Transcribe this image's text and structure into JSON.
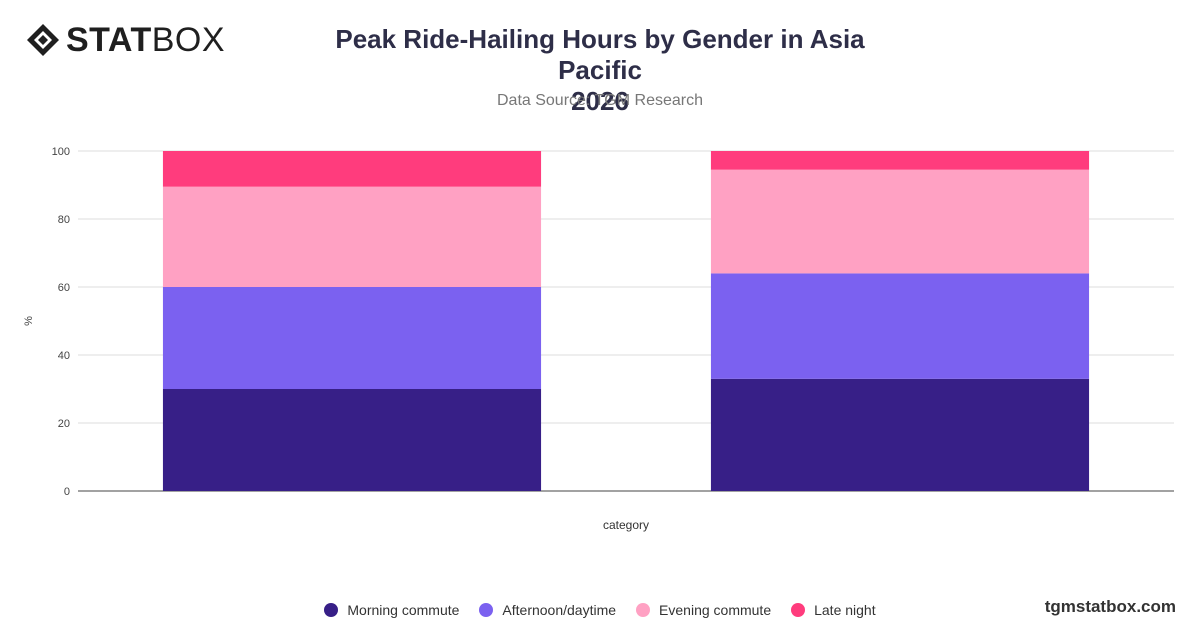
{
  "logo": {
    "bold": "STAT",
    "light": "BOX"
  },
  "title_line1": "Peak Ride-Hailing Hours by Gender in Asia Pacific",
  "title_line2": "2026",
  "subtitle": "Data Source: TGM Research",
  "brand": "tgmstatbox.com",
  "chart_data": {
    "type": "bar",
    "stacked": true,
    "categories": [
      "",
      ""
    ],
    "xlabel": "category",
    "ylabel": "%",
    "ylim": [
      0,
      100
    ],
    "yticks": [
      0,
      20,
      40,
      60,
      80,
      100
    ],
    "grid": true,
    "legend_position": "bottom",
    "series": [
      {
        "name": "Morning commute",
        "color": "#371F87",
        "values": [
          30,
          33
        ]
      },
      {
        "name": "Afternoon/daytime",
        "color": "#7B61F0",
        "values": [
          30,
          31
        ]
      },
      {
        "name": "Evening commute",
        "color": "#FFA1C3",
        "values": [
          29.5,
          30.5
        ]
      },
      {
        "name": "Late night",
        "color": "#FF3C7D",
        "values": [
          10.5,
          5.5
        ]
      }
    ]
  }
}
